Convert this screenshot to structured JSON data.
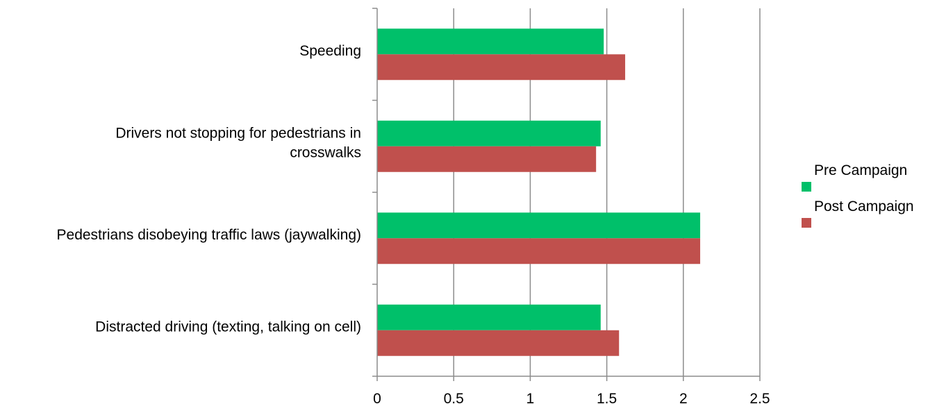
{
  "chart_data": {
    "type": "bar",
    "orientation": "horizontal",
    "categories": [
      [
        "Speeding"
      ],
      [
        "Drivers not stopping for pedestrians in",
        "crosswalks"
      ],
      [
        "Pedestrians disobeying traffic laws (jaywalking)"
      ],
      [
        "Distracted driving (texting, talking on cell)"
      ]
    ],
    "series": [
      {
        "name": "Pre Campaign",
        "color": "#00C06A",
        "values": [
          1.48,
          1.46,
          2.11,
          1.46
        ]
      },
      {
        "name": "Post Campaign",
        "color": "#C0504D",
        "values": [
          1.62,
          1.43,
          2.11,
          1.58
        ]
      }
    ],
    "xlim": [
      0,
      2.5
    ],
    "xticks": [
      "0",
      "0.5",
      "1",
      "1.5",
      "2",
      "2.5"
    ],
    "grid": true,
    "legend": "right"
  }
}
